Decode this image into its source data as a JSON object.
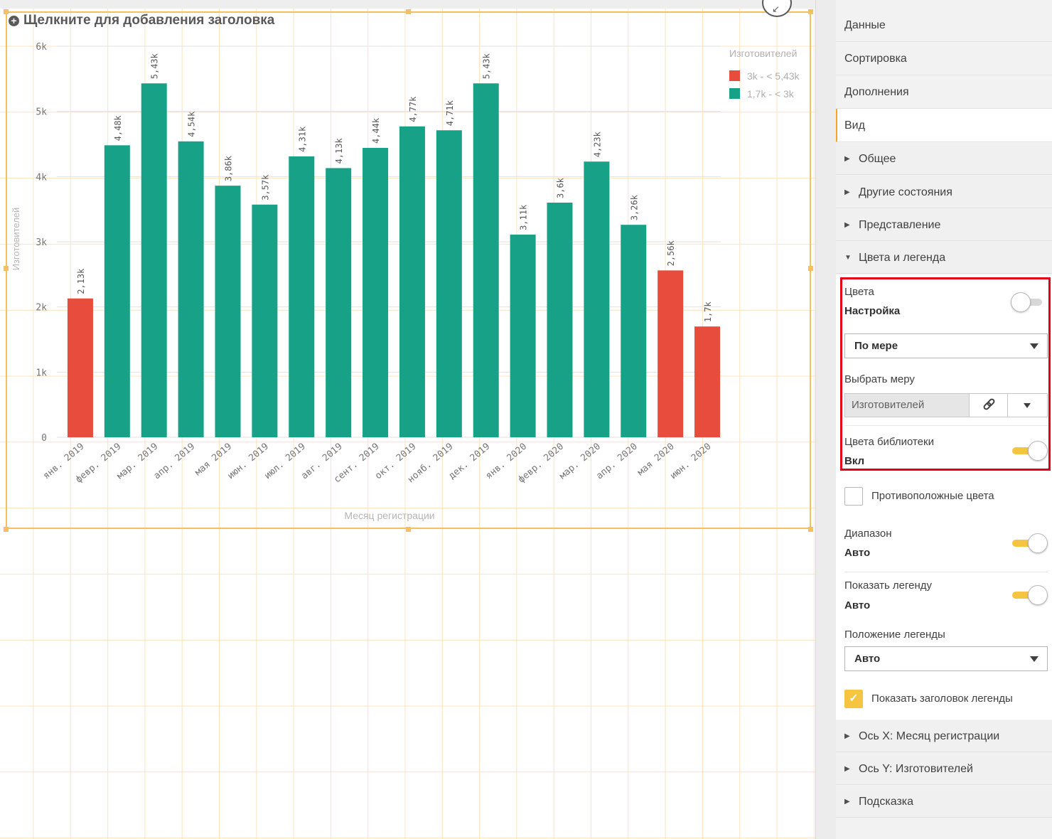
{
  "chart_title_placeholder": "Щелкните для добавления заголовка",
  "chart_data": {
    "type": "bar",
    "xlabel": "Месяц регистрации",
    "ylabel": "Изготовителей",
    "ylim": [
      0,
      6000
    ],
    "yticks": [
      "0",
      "1k",
      "2k",
      "3k",
      "4k",
      "5k",
      "6k"
    ],
    "categories": [
      "янв. 2019",
      "февр. 2019",
      "мар. 2019",
      "апр. 2019",
      "мая 2019",
      "июн. 2019",
      "июл. 2019",
      "авг. 2019",
      "сент. 2019",
      "окт. 2019",
      "нояб. 2019",
      "дек. 2019",
      "янв. 2020",
      "февр. 2020",
      "мар. 2020",
      "апр. 2020",
      "мая 2020",
      "июн. 2020"
    ],
    "values": [
      2130,
      4480,
      5430,
      4540,
      3860,
      3570,
      4310,
      4130,
      4440,
      4770,
      4710,
      5430,
      3110,
      3600,
      4230,
      3260,
      2560,
      1700
    ],
    "value_labels": [
      "2,13k",
      "4,48k",
      "5,43k",
      "4,54k",
      "3,86k",
      "3,57k",
      "4,31k",
      "4,13k",
      "4,44k",
      "4,77k",
      "4,71k",
      "5,43k",
      "3,11k",
      "3,6k",
      "4,23k",
      "3,26k",
      "2,56k",
      "1,7k"
    ],
    "bar_groups": [
      0,
      1,
      1,
      1,
      1,
      1,
      1,
      1,
      1,
      1,
      1,
      1,
      1,
      1,
      1,
      1,
      0,
      0
    ],
    "legend": {
      "title": "Изготовителей",
      "position": "top-right",
      "entries": [
        {
          "label": "3k - < 5,43k",
          "color": "#e84c3d"
        },
        {
          "label": "1,7k - < 3k",
          "color": "#17a288"
        }
      ]
    },
    "grid": true
  },
  "panel": {
    "tabs": [
      "Данные",
      "Сортировка",
      "Дополнения",
      "Вид"
    ],
    "active_tab": "Вид",
    "sections_top": [
      "Общее",
      "Другие состояния",
      "Представление"
    ],
    "open_section": "Цвета и легенда",
    "colors": {
      "label": "Цвета",
      "value": "Настройка",
      "toggle_on": false,
      "mode_select": "По мере",
      "measure_label": "Выбрать меру",
      "measure_value": "Изготовителей",
      "library_label": "Цвета библиотеки",
      "library_value": "Вкл",
      "library_on": true
    },
    "reverse_colors_label": "Противоположные цвета",
    "range": {
      "label": "Диапазон",
      "value": "Авто",
      "toggle_on": true
    },
    "show_legend": {
      "label": "Показать легенду",
      "value": "Авто",
      "toggle_on": true
    },
    "legend_position": {
      "label": "Положение легенды",
      "value": "Авто"
    },
    "show_legend_title": {
      "label": "Показать заголовок легенды",
      "checked": true
    },
    "sections_bottom": [
      "Ось X: Месяц регистрации",
      "Ось Y: Изготовителей",
      "Подсказка"
    ]
  },
  "colors": {
    "accent": "#f5c542",
    "highlight_border": "#e0001a",
    "frame": "#f5c060"
  }
}
